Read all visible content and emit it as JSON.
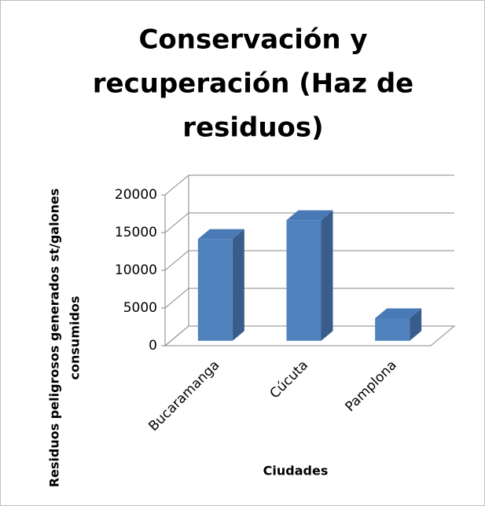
{
  "chart_data": {
    "type": "bar3d",
    "title": [
      "Conservación y",
      "recuperación (Haz de",
      "residuos)"
    ],
    "y_label": [
      "Residuos peligrosos generados st/galones",
      "consumidos"
    ],
    "x_label": "Ciudades",
    "categories": [
      "Bucaramanga",
      "Cúcuta",
      "Pamplona"
    ],
    "values": [
      13500,
      16000,
      3000
    ],
    "color": "#4f81bd",
    "ylim": [
      0,
      20000
    ],
    "yticks": [
      0,
      5000,
      10000,
      15000,
      20000
    ],
    "grid": true
  }
}
